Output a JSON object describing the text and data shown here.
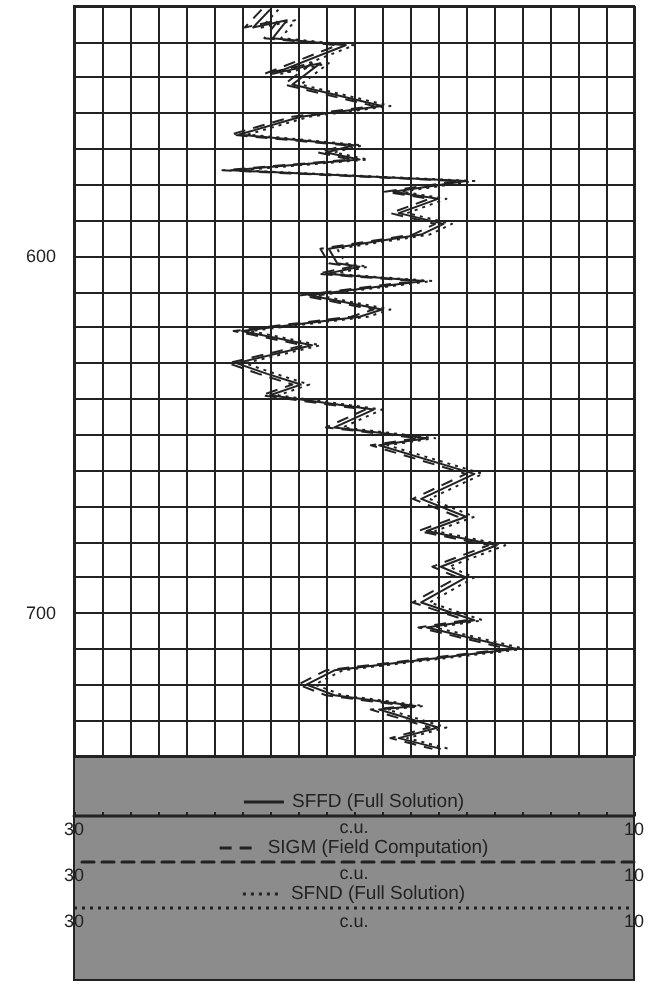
{
  "chart_data": {
    "type": "line",
    "xlabel": "c.u.",
    "x2label": "c.u.",
    "annotations": [
      "30",
      "c.u.",
      "10"
    ],
    "legend": "bottom",
    "grid": true,
    "marker": "none",
    "xlim": [
      30,
      10
    ],
    "x2lim": [
      30,
      10
    ],
    "xticks": [
      30,
      {
        "value": 29,
        "label": null
      },
      {
        "value": 28,
        "label": null
      },
      {
        "value": 27,
        "label": null
      },
      {
        "value": 26,
        "label": null
      },
      {
        "value": 25,
        "label": null
      },
      {
        "value": 24,
        "label": null
      },
      {
        "value": 23,
        "label": null
      },
      {
        "value": 22,
        "label": null
      },
      {
        "value": 21,
        "label": null
      },
      {
        "value": 20,
        "label": null
      },
      {
        "value": 19,
        "label": null
      },
      {
        "value": 18,
        "label": null
      },
      {
        "value": 17,
        "label": null
      },
      {
        "value": 16,
        "label": null
      },
      {
        "value": 15,
        "label": null
      },
      {
        "value": 14,
        "label": null
      },
      {
        "value": 13,
        "label": null
      },
      {
        "value": 12,
        "label": null
      },
      {
        "value": 11,
        "label": null
      },
      10
    ],
    "x2ticks": [
      30,
      10
    ],
    "ylim": [
      740,
      530
    ],
    "yticks": [
      {
        "value": 530,
        "label": null
      },
      {
        "value": 540,
        "label": null
      },
      {
        "value": 550,
        "label": null
      },
      {
        "value": 560,
        "label": null
      },
      {
        "value": 570,
        "label": null
      },
      {
        "value": 580,
        "label": null
      },
      {
        "value": 590,
        "label": null
      },
      600,
      {
        "value": 610,
        "label": null
      },
      {
        "value": 620,
        "label": null
      },
      {
        "value": 630,
        "label": null
      },
      {
        "value": 640,
        "label": null
      },
      {
        "value": 650,
        "label": null
      },
      {
        "value": 660,
        "label": null
      },
      {
        "value": 670,
        "label": null
      },
      {
        "value": 680,
        "label": null
      },
      {
        "value": 690,
        "label": null
      },
      700,
      {
        "value": 710,
        "label": null
      },
      {
        "value": 720,
        "label": null
      },
      {
        "value": 730,
        "label": null
      },
      {
        "value": 740,
        "label": null
      }
    ],
    "series": [
      {
        "name": "SFFD (Full Solution)",
        "color": "#222222",
        "line_style": "solid",
        "x": [
          23.0,
          23.6,
          22.4,
          22.9,
          20.3,
          22.9,
          21.2,
          22.2,
          19.0,
          21.9,
          24.1,
          20.0,
          21.0,
          19.8,
          24.4,
          16.0,
          18.6,
          17.0,
          18.4,
          16.8,
          17.6,
          20.9,
          20.6,
          19.8,
          21.0,
          17.5,
          21.6,
          19.0,
          19.8,
          24.0,
          21.5,
          24.2,
          23.1,
          21.9,
          23.0,
          19.3,
          20.7,
          17.4,
          19.1,
          15.7,
          17.6,
          16.0,
          17.4,
          14.9,
          16.9,
          16.0,
          17.6,
          15.7,
          17.4,
          14.2,
          20.7,
          21.7,
          20.7,
          17.8,
          19.1,
          17.0,
          18.4,
          16.9
        ],
        "values": [
          531,
          536,
          534,
          539,
          541,
          549,
          546,
          552,
          558,
          561,
          566,
          569,
          571,
          573,
          576,
          579,
          582,
          584,
          588,
          591,
          594,
          598,
          602,
          603,
          605,
          607,
          611,
          615,
          617,
          621,
          625,
          630,
          633,
          636,
          639,
          643,
          648,
          651,
          653,
          661,
          668,
          673,
          677,
          681,
          687,
          690,
          697,
          702,
          704,
          710,
          716,
          720,
          723,
          726,
          727,
          732,
          735,
          738
        ]
      },
      {
        "name": "SIGM (Field Computation)",
        "color": "#222222",
        "line_style": "dashed",
        "axis": "x2",
        "x": [
          23.3,
          23.9,
          22.7,
          23.2,
          20.6,
          23.2,
          21.5,
          22.5,
          19.3,
          22.2,
          24.4,
          20.3,
          21.3,
          20.1,
          24.7,
          16.3,
          18.9,
          17.3,
          18.7,
          17.1,
          17.9,
          21.2,
          20.9,
          20.1,
          21.3,
          17.8,
          21.9,
          19.3,
          20.1,
          24.3,
          21.8,
          24.5,
          23.4,
          22.2,
          23.3,
          19.6,
          21.0,
          17.7,
          19.4,
          16.0,
          17.9,
          16.3,
          17.7,
          15.2,
          17.2,
          16.3,
          17.9,
          16.0,
          17.7,
          14.5,
          21.0,
          22.0,
          21.0,
          18.1,
          19.4,
          17.3,
          18.7,
          17.2
        ],
        "values": [
          531,
          536,
          534,
          539,
          541,
          549,
          546,
          552,
          558,
          561,
          566,
          569,
          571,
          573,
          576,
          579,
          582,
          584,
          588,
          591,
          594,
          598,
          602,
          603,
          605,
          607,
          611,
          615,
          617,
          621,
          625,
          630,
          633,
          636,
          639,
          643,
          648,
          651,
          653,
          661,
          668,
          673,
          677,
          681,
          687,
          690,
          697,
          702,
          704,
          710,
          716,
          720,
          723,
          726,
          727,
          732,
          735,
          738
        ]
      },
      {
        "name": "SFND (Full Solution)",
        "color": "#222222",
        "line_style": "dotted",
        "x": [
          22.7,
          23.3,
          22.1,
          22.6,
          20.0,
          22.6,
          20.9,
          21.9,
          18.7,
          21.6,
          23.8,
          19.7,
          20.7,
          19.5,
          24.1,
          15.7,
          18.3,
          16.7,
          18.1,
          16.5,
          17.3,
          20.6,
          20.3,
          19.5,
          20.7,
          17.2,
          21.3,
          18.7,
          19.5,
          23.7,
          21.2,
          23.9,
          22.8,
          21.6,
          22.7,
          19.0,
          20.4,
          17.1,
          18.8,
          15.4,
          17.3,
          15.7,
          17.1,
          14.6,
          16.6,
          15.7,
          17.3,
          15.4,
          17.1,
          13.9,
          20.4,
          21.4,
          20.4,
          17.5,
          18.8,
          16.7,
          18.1,
          16.6
        ],
        "values": [
          531,
          536,
          534,
          539,
          541,
          549,
          546,
          552,
          558,
          561,
          566,
          569,
          571,
          573,
          576,
          579,
          582,
          584,
          588,
          591,
          594,
          598,
          602,
          603,
          605,
          607,
          611,
          615,
          617,
          621,
          625,
          630,
          633,
          636,
          639,
          643,
          648,
          651,
          653,
          661,
          668,
          673,
          677,
          681,
          687,
          690,
          697,
          702,
          704,
          710,
          716,
          720,
          723,
          726,
          727,
          732,
          735,
          738
        ]
      }
    ]
  }
}
